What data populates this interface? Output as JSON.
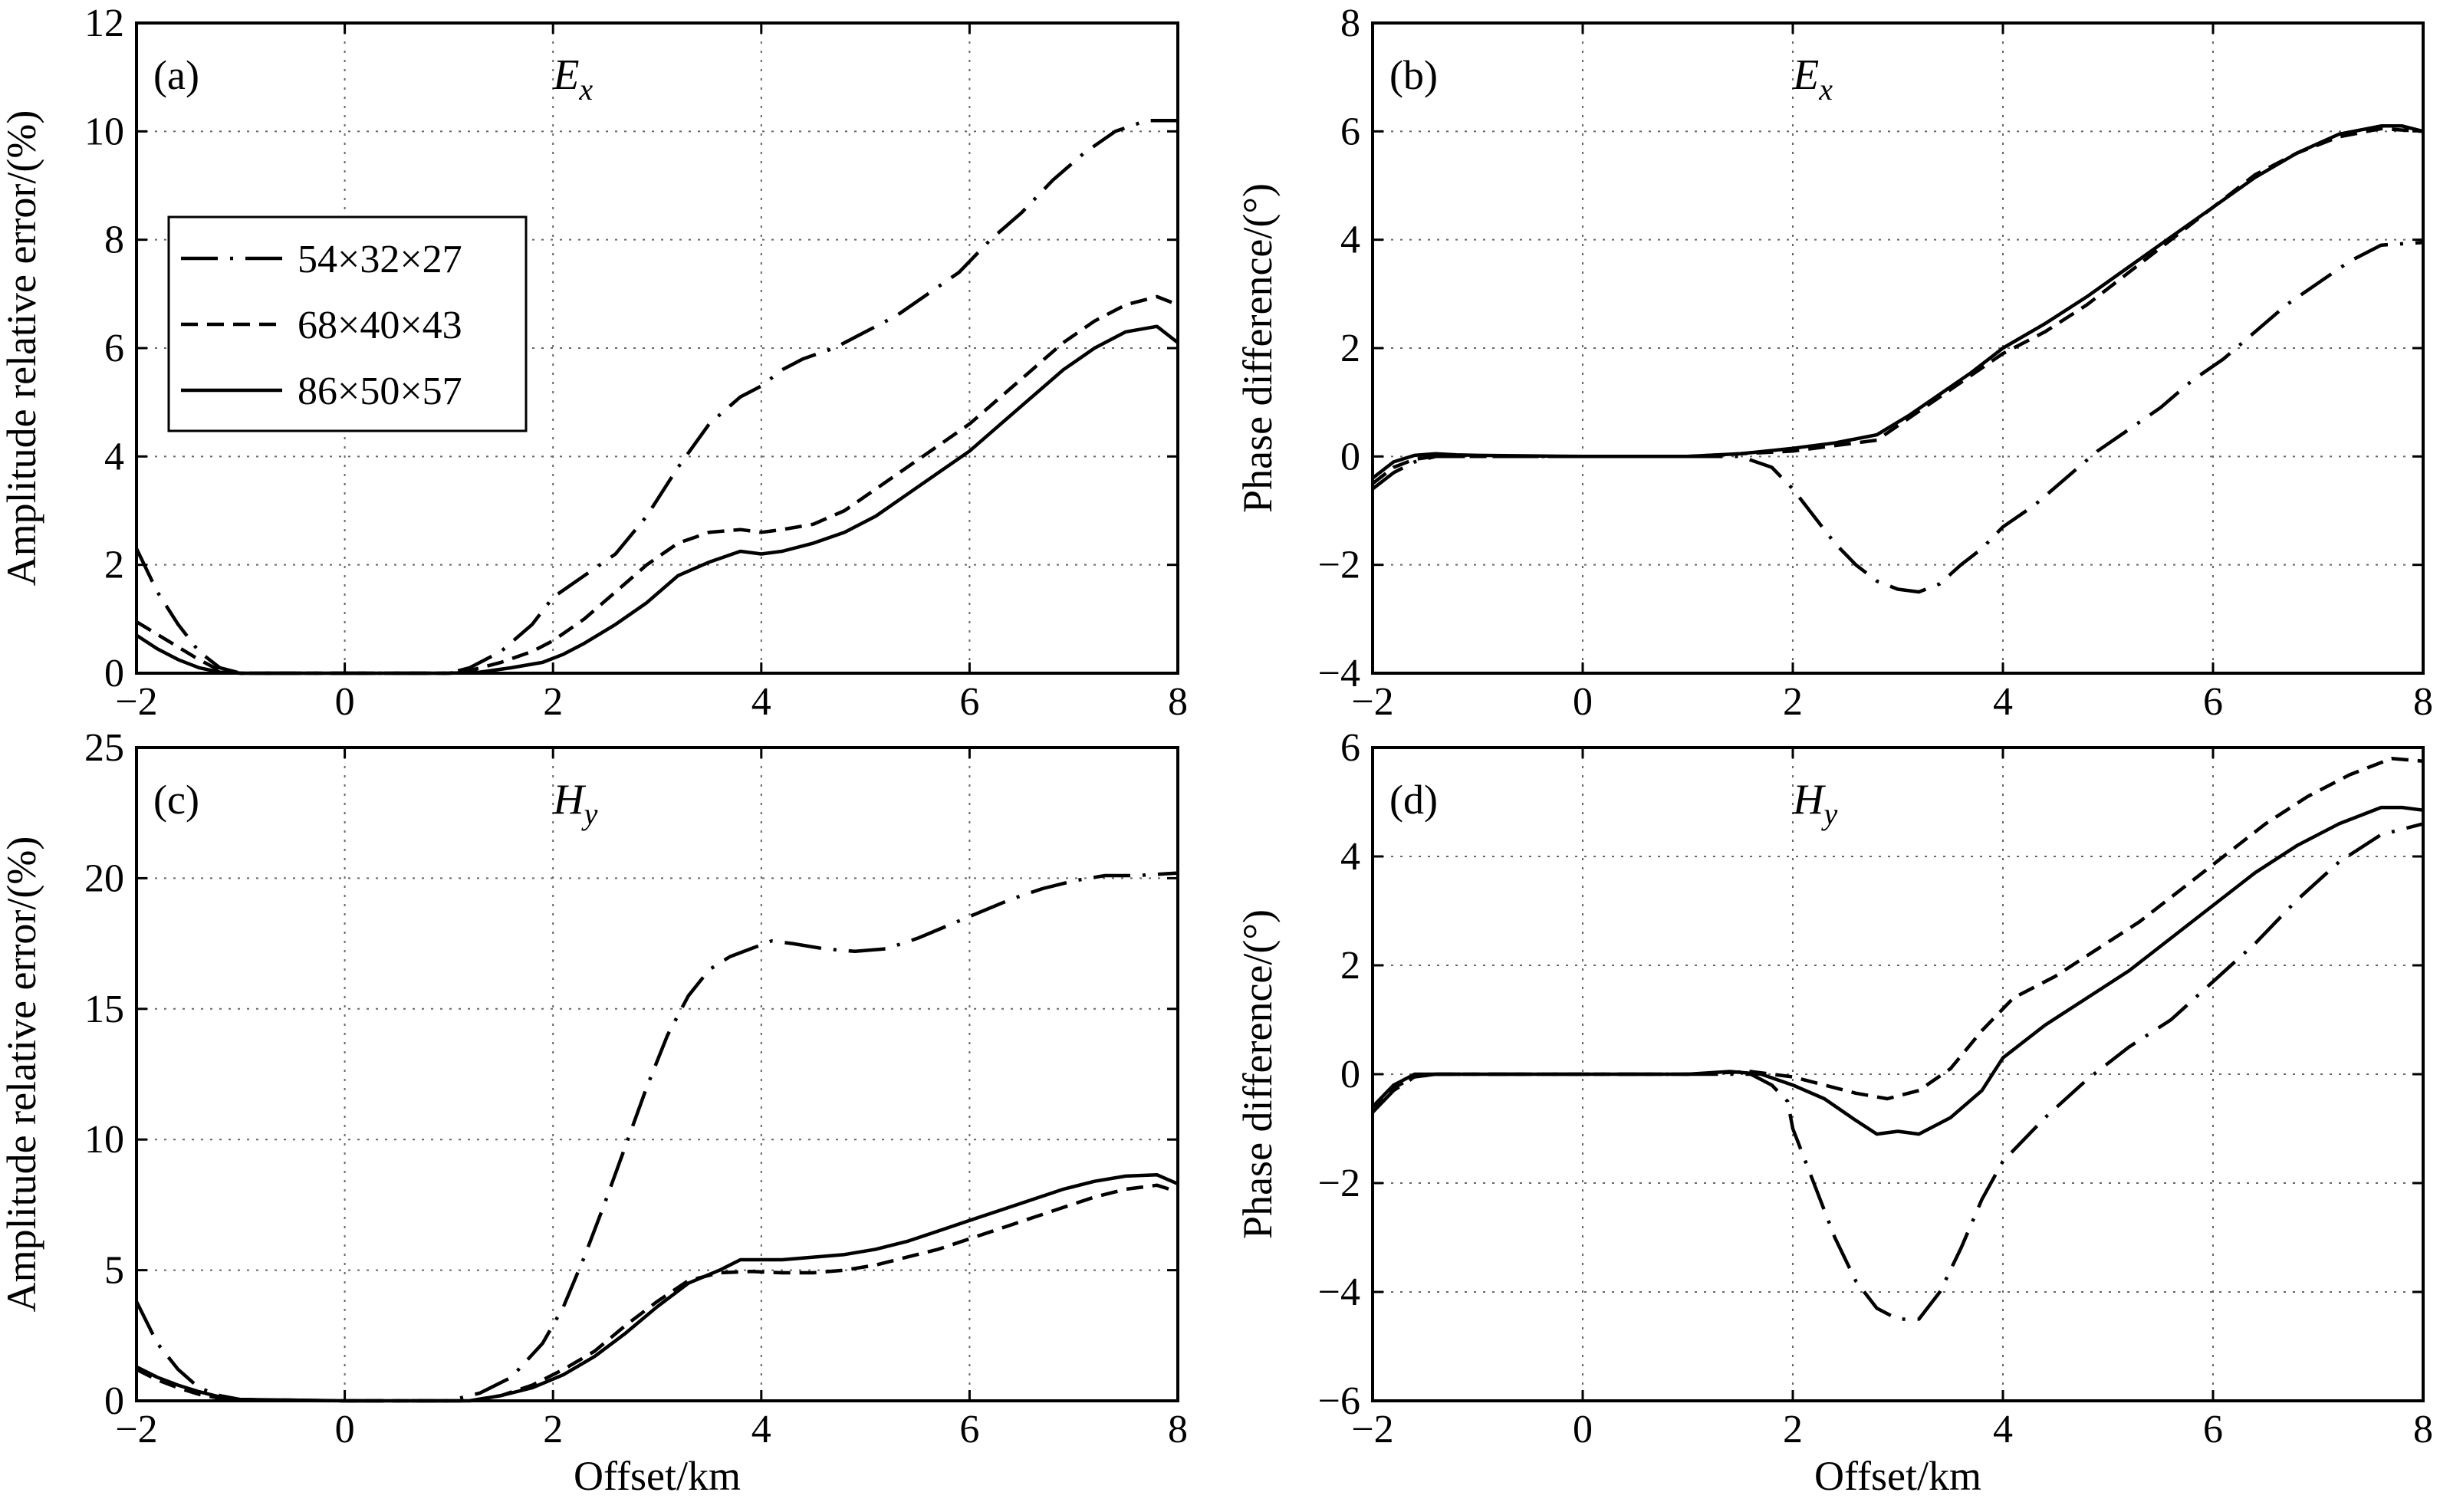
{
  "series_styles": {
    "54×32×27": "dashdot",
    "68×40×43": "dashed",
    "86×50×57": "solid"
  },
  "chart_data": [
    {
      "id": "a",
      "type": "line",
      "tag": "(a)",
      "component": {
        "main": "E",
        "sub": "x"
      },
      "xlabel": "",
      "ylabel": "Amplitude relative error/(%)",
      "xlim": [
        -2,
        8
      ],
      "ylim": [
        0,
        12
      ],
      "xticks": [
        -2,
        0,
        2,
        4,
        6,
        8
      ],
      "yticks": [
        0,
        2,
        4,
        6,
        8,
        10,
        12
      ],
      "grid": true,
      "legend": {
        "position": "upper-left",
        "entries": [
          "54×32×27",
          "68×40×43",
          "86×50×57"
        ]
      },
      "series": [
        {
          "name": "54×32×27",
          "x": [
            -2,
            -1.8,
            -1.6,
            -1.4,
            -1.2,
            -1.0,
            0,
            1.0,
            1.2,
            1.5,
            1.8,
            2.0,
            2.3,
            2.6,
            2.9,
            3.2,
            3.5,
            3.8,
            4.0,
            4.2,
            4.4,
            4.7,
            5.0,
            5.3,
            5.6,
            5.9,
            6.2,
            6.5,
            6.8,
            7.1,
            7.4,
            7.7,
            8.0
          ],
          "y": [
            2.3,
            1.5,
            0.9,
            0.4,
            0.1,
            0,
            0,
            0,
            0.1,
            0.4,
            0.9,
            1.4,
            1.8,
            2.2,
            2.9,
            3.8,
            4.6,
            5.1,
            5.3,
            5.6,
            5.8,
            6.0,
            6.3,
            6.6,
            7.0,
            7.4,
            8.0,
            8.5,
            9.1,
            9.6,
            10.0,
            10.2,
            10.2
          ]
        },
        {
          "name": "68×40×43",
          "x": [
            -2,
            -1.7,
            -1.4,
            -1.2,
            -1.0,
            0,
            1.0,
            1.2,
            1.5,
            1.8,
            2.0,
            2.3,
            2.6,
            2.9,
            3.2,
            3.5,
            3.8,
            4.0,
            4.2,
            4.5,
            4.8,
            5.1,
            5.4,
            5.7,
            6.0,
            6.3,
            6.6,
            6.9,
            7.2,
            7.5,
            7.8,
            8.0
          ],
          "y": [
            0.95,
            0.6,
            0.25,
            0.05,
            0,
            0,
            0,
            0.05,
            0.2,
            0.4,
            0.6,
            1.0,
            1.5,
            2.0,
            2.4,
            2.6,
            2.65,
            2.6,
            2.65,
            2.75,
            3.0,
            3.4,
            3.8,
            4.2,
            4.6,
            5.1,
            5.6,
            6.1,
            6.5,
            6.8,
            6.95,
            6.8
          ]
        },
        {
          "name": "86×50×57",
          "x": [
            -2,
            -1.8,
            -1.6,
            -1.4,
            -1.2,
            -1.0,
            0,
            1.0,
            1.3,
            1.6,
            1.9,
            2.1,
            2.3,
            2.6,
            2.9,
            3.2,
            3.5,
            3.8,
            4.0,
            4.2,
            4.5,
            4.8,
            5.1,
            5.4,
            5.7,
            6.0,
            6.3,
            6.6,
            6.9,
            7.2,
            7.5,
            7.8,
            8.0
          ],
          "y": [
            0.7,
            0.45,
            0.25,
            0.1,
            0.02,
            0,
            0,
            0,
            0.02,
            0.1,
            0.2,
            0.35,
            0.55,
            0.9,
            1.3,
            1.8,
            2.05,
            2.25,
            2.2,
            2.25,
            2.4,
            2.6,
            2.9,
            3.3,
            3.7,
            4.1,
            4.6,
            5.1,
            5.6,
            6.0,
            6.3,
            6.4,
            6.1
          ]
        }
      ]
    },
    {
      "id": "b",
      "type": "line",
      "tag": "(b)",
      "component": {
        "main": "E",
        "sub": "x"
      },
      "xlabel": "",
      "ylabel": "Phase difference/(°)",
      "xlim": [
        -2,
        8
      ],
      "ylim": [
        -4,
        8
      ],
      "xticks": [
        -2,
        0,
        2,
        4,
        6,
        8
      ],
      "yticks": [
        -4,
        -2,
        0,
        2,
        4,
        6,
        8
      ],
      "grid": true,
      "series": [
        {
          "name": "54×32×27",
          "x": [
            -2,
            -1.8,
            -1.6,
            -1.4,
            -1.2,
            0,
            1.2,
            1.5,
            1.8,
            2.0,
            2.2,
            2.4,
            2.6,
            2.8,
            3.0,
            3.2,
            3.4,
            3.6,
            3.8,
            4.0,
            4.3,
            4.6,
            4.9,
            5.2,
            5.5,
            5.8,
            6.1,
            6.4,
            6.7,
            7.0,
            7.3,
            7.6,
            8.0
          ],
          "y": [
            -0.6,
            -0.3,
            -0.1,
            0,
            0,
            0,
            0,
            0,
            -0.2,
            -0.6,
            -1.1,
            -1.6,
            -2.0,
            -2.3,
            -2.45,
            -2.5,
            -2.35,
            -2.0,
            -1.7,
            -1.3,
            -0.9,
            -0.4,
            0.1,
            0.5,
            0.9,
            1.4,
            1.8,
            2.3,
            2.8,
            3.2,
            3.6,
            3.9,
            3.95
          ]
        },
        {
          "name": "68×40×43",
          "x": [
            -2,
            -1.8,
            -1.6,
            -1.4,
            -1.2,
            0,
            1.0,
            1.5,
            2.0,
            2.4,
            2.8,
            3.1,
            3.4,
            3.7,
            4.0,
            4.4,
            4.8,
            5.2,
            5.6,
            6.0,
            6.4,
            6.8,
            7.2,
            7.6,
            8.0
          ],
          "y": [
            -0.5,
            -0.2,
            -0.05,
            0,
            0,
            0,
            0,
            0.05,
            0.1,
            0.2,
            0.3,
            0.7,
            1.1,
            1.5,
            1.9,
            2.3,
            2.8,
            3.4,
            4.0,
            4.6,
            5.2,
            5.6,
            5.9,
            6.05,
            6.0
          ]
        },
        {
          "name": "86×50×57",
          "x": [
            -2,
            -1.8,
            -1.6,
            -1.4,
            -1.2,
            -1.0,
            0,
            1.0,
            1.5,
            2.0,
            2.4,
            2.8,
            3.1,
            3.4,
            3.7,
            4.0,
            4.4,
            4.8,
            5.2,
            5.6,
            6.0,
            6.4,
            6.8,
            7.2,
            7.6,
            7.8,
            8.0
          ],
          "y": [
            -0.4,
            -0.1,
            0.02,
            0.05,
            0.03,
            0.02,
            0,
            0,
            0.05,
            0.15,
            0.25,
            0.4,
            0.75,
            1.15,
            1.55,
            2.0,
            2.45,
            2.95,
            3.5,
            4.05,
            4.6,
            5.15,
            5.6,
            5.95,
            6.1,
            6.1,
            6.0
          ]
        }
      ]
    },
    {
      "id": "c",
      "type": "line",
      "tag": "(c)",
      "component": {
        "main": "H",
        "sub": "y"
      },
      "xlabel": "Offset/km",
      "ylabel": "Amplitude relative error/(%)",
      "xlim": [
        -2,
        8
      ],
      "ylim": [
        0,
        25
      ],
      "xticks": [
        -2,
        0,
        2,
        4,
        6,
        8
      ],
      "yticks": [
        0,
        5,
        10,
        15,
        20,
        25
      ],
      "grid": true,
      "series": [
        {
          "name": "54×32×27",
          "x": [
            -2,
            -1.8,
            -1.6,
            -1.4,
            -1.2,
            -1.0,
            0,
            1.0,
            1.3,
            1.6,
            1.9,
            2.1,
            2.3,
            2.5,
            2.7,
            2.9,
            3.1,
            3.3,
            3.5,
            3.7,
            3.9,
            4.1,
            4.3,
            4.6,
            4.9,
            5.2,
            5.5,
            5.8,
            6.1,
            6.4,
            6.7,
            7.0,
            7.3,
            7.6,
            8.0
          ],
          "y": [
            3.8,
            2.2,
            1.2,
            0.5,
            0.2,
            0.05,
            0,
            0,
            0.3,
            0.9,
            2.2,
            3.6,
            5.5,
            7.6,
            9.8,
            12.0,
            14.0,
            15.5,
            16.5,
            17.0,
            17.3,
            17.6,
            17.5,
            17.3,
            17.2,
            17.3,
            17.7,
            18.2,
            18.7,
            19.2,
            19.6,
            19.9,
            20.1,
            20.1,
            20.2
          ]
        },
        {
          "name": "68×40×43",
          "x": [
            -2,
            -1.8,
            -1.6,
            -1.4,
            -1.2,
            -1.0,
            0,
            1.2,
            1.5,
            1.8,
            2.1,
            2.4,
            2.7,
            3.0,
            3.3,
            3.6,
            3.9,
            4.2,
            4.5,
            4.8,
            5.1,
            5.4,
            5.7,
            6.0,
            6.3,
            6.6,
            6.9,
            7.2,
            7.5,
            7.8,
            8.0
          ],
          "y": [
            1.2,
            0.8,
            0.5,
            0.25,
            0.1,
            0.02,
            0,
            0,
            0.2,
            0.6,
            1.2,
            1.9,
            2.9,
            3.8,
            4.6,
            4.9,
            4.95,
            4.9,
            4.9,
            5.0,
            5.2,
            5.5,
            5.8,
            6.2,
            6.6,
            7.0,
            7.4,
            7.8,
            8.1,
            8.25,
            8.0
          ]
        },
        {
          "name": "86×50×57",
          "x": [
            -2,
            -1.8,
            -1.6,
            -1.4,
            -1.2,
            -1.0,
            0,
            1.2,
            1.5,
            1.8,
            2.1,
            2.4,
            2.7,
            3.0,
            3.3,
            3.6,
            3.8,
            4.0,
            4.2,
            4.5,
            4.8,
            5.1,
            5.4,
            5.7,
            6.0,
            6.3,
            6.6,
            6.9,
            7.2,
            7.5,
            7.8,
            8.0
          ],
          "y": [
            1.3,
            0.9,
            0.6,
            0.35,
            0.15,
            0.05,
            0,
            0,
            0.2,
            0.5,
            1.0,
            1.7,
            2.6,
            3.6,
            4.5,
            5.0,
            5.4,
            5.4,
            5.4,
            5.5,
            5.6,
            5.8,
            6.1,
            6.5,
            6.9,
            7.3,
            7.7,
            8.1,
            8.4,
            8.6,
            8.65,
            8.3
          ]
        }
      ]
    },
    {
      "id": "d",
      "type": "line",
      "tag": "(d)",
      "component": {
        "main": "H",
        "sub": "y"
      },
      "xlabel": "Offset/km",
      "ylabel": "Phase difference/(°)",
      "xlim": [
        -2,
        8
      ],
      "ylim": [
        -6,
        6
      ],
      "xticks": [
        -2,
        0,
        2,
        4,
        6,
        8
      ],
      "yticks": [
        -6,
        -4,
        -2,
        0,
        2,
        4,
        6
      ],
      "grid": true,
      "series": [
        {
          "name": "54×32×27",
          "x": [
            -2,
            -1.8,
            -1.6,
            -1.4,
            0,
            1.0,
            1.4,
            1.6,
            1.8,
            1.95,
            2.0,
            2.2,
            2.4,
            2.6,
            2.8,
            3.0,
            3.2,
            3.4,
            3.6,
            3.8,
            4.0,
            4.4,
            4.8,
            5.2,
            5.6,
            6.0,
            6.4,
            6.8,
            7.2,
            7.6,
            8.0
          ],
          "y": [
            -0.7,
            -0.3,
            -0.05,
            0,
            0,
            0,
            0,
            0,
            -0.2,
            -0.5,
            -1.0,
            -2.0,
            -3.0,
            -3.8,
            -4.3,
            -4.5,
            -4.5,
            -4.0,
            -3.2,
            -2.3,
            -1.6,
            -0.8,
            -0.1,
            0.5,
            1.0,
            1.7,
            2.4,
            3.2,
            3.9,
            4.4,
            4.6
          ]
        },
        {
          "name": "68×40×43",
          "x": [
            -2,
            -1.8,
            -1.6,
            -1.4,
            0,
            1.0,
            1.6,
            2.0,
            2.3,
            2.6,
            2.9,
            3.2,
            3.5,
            3.8,
            4.1,
            4.5,
            4.9,
            5.3,
            5.7,
            6.1,
            6.5,
            6.9,
            7.3,
            7.7,
            8.0
          ],
          "y": [
            -0.7,
            -0.25,
            -0.05,
            0,
            0,
            0,
            0.05,
            -0.05,
            -0.2,
            -0.35,
            -0.45,
            -0.3,
            0.1,
            0.8,
            1.4,
            1.8,
            2.3,
            2.8,
            3.4,
            4.0,
            4.6,
            5.1,
            5.5,
            5.8,
            5.75
          ]
        },
        {
          "name": "86×50×57",
          "x": [
            -2,
            -1.8,
            -1.6,
            -1.4,
            0,
            1.0,
            1.4,
            1.7,
            2.0,
            2.3,
            2.6,
            2.8,
            3.0,
            3.2,
            3.5,
            3.8,
            4.0,
            4.4,
            4.8,
            5.2,
            5.6,
            6.0,
            6.4,
            6.8,
            7.2,
            7.6,
            7.8,
            8.0
          ],
          "y": [
            -0.6,
            -0.2,
            0,
            0,
            0,
            0,
            0.05,
            0,
            -0.2,
            -0.45,
            -0.85,
            -1.1,
            -1.05,
            -1.1,
            -0.8,
            -0.3,
            0.3,
            0.9,
            1.4,
            1.9,
            2.5,
            3.1,
            3.7,
            4.2,
            4.6,
            4.9,
            4.9,
            4.85
          ]
        }
      ]
    }
  ]
}
